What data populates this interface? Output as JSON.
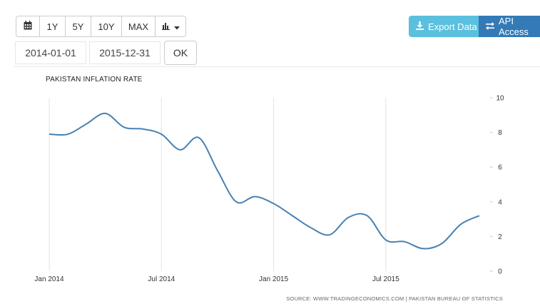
{
  "toolbar": {
    "calendar_icon": "calendar-icon",
    "ranges": [
      "1Y",
      "5Y",
      "10Y",
      "MAX"
    ],
    "chart_type_icon": "bar-chart-icon",
    "start_date": "2014-01-01",
    "end_date": "2015-12-31",
    "ok_label": "OK",
    "export_label": "Export Data",
    "api_label": "API Access",
    "export_color": "#5bc0de",
    "api_color": "#337ab7"
  },
  "chart_data": {
    "type": "line",
    "title": "PAKISTAN INFLATION RATE",
    "source": "SOURCE: WWW.TRADINGECONOMICS.COM | PAKISTAN BUREAU OF STATISTICS",
    "xlabel": "",
    "ylabel": "",
    "ylim": [
      0,
      10
    ],
    "yticks": [
      0,
      2,
      4,
      6,
      8,
      10
    ],
    "y_axis_side": "right",
    "xticks": [
      "Jan 2014",
      "Jul 2014",
      "Jan 2015",
      "Jul 2015"
    ],
    "grid": "vertical",
    "line_color": "#4682b4",
    "series": [
      {
        "x": [
          "2014-01",
          "2014-02",
          "2014-03",
          "2014-04",
          "2014-05",
          "2014-06",
          "2014-07",
          "2014-08",
          "2014-09",
          "2014-10",
          "2014-11",
          "2014-12",
          "2015-01",
          "2015-02",
          "2015-03",
          "2015-04",
          "2015-05",
          "2015-06",
          "2015-07",
          "2015-08",
          "2015-09",
          "2015-10",
          "2015-11",
          "2015-12"
        ],
        "values": [
          7.9,
          7.9,
          8.5,
          9.1,
          8.3,
          8.2,
          7.9,
          7.0,
          7.7,
          5.8,
          4.0,
          4.3,
          3.9,
          3.2,
          2.5,
          2.1,
          3.1,
          3.2,
          1.8,
          1.7,
          1.3,
          1.6,
          2.7,
          3.2
        ]
      }
    ]
  }
}
